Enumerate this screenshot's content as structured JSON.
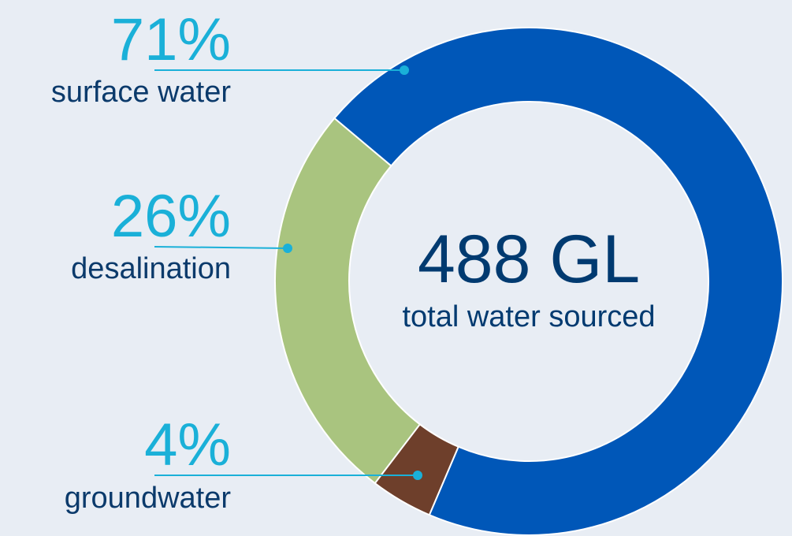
{
  "chart_data": {
    "type": "pie",
    "donut": true,
    "center_value": "488 GL",
    "center_label": "total water sourced",
    "slices": [
      {
        "label": "surface water",
        "percent_label": "71%",
        "value": 71,
        "color": "#0057b8"
      },
      {
        "label": "groundwater",
        "percent_label": "4%",
        "value": 4,
        "color": "#6e3f2b"
      },
      {
        "label": "desalination",
        "percent_label": "26%",
        "value": 26,
        "color": "#a9c47f"
      }
    ]
  },
  "colors": {
    "background": "#e8edf4",
    "percent_text": "#1ab0d8",
    "label_text": "#0b3a6b",
    "leader_line": "#1ab0d8",
    "center_text": "#003a70",
    "slice_border": "#ffffff"
  }
}
